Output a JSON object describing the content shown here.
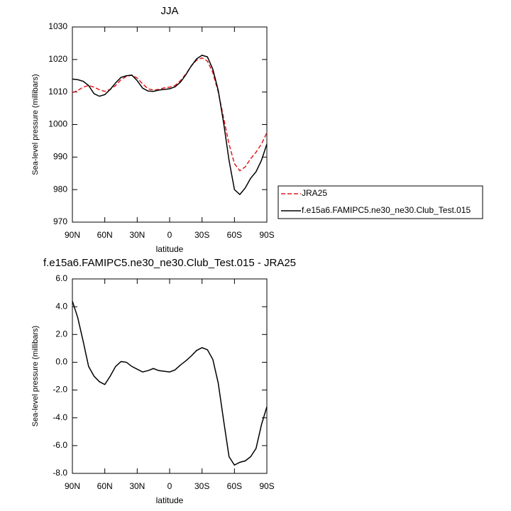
{
  "chart_data": [
    {
      "type": "line",
      "title": "JJA",
      "ylabel": "Sea-level pressure (millibars)",
      "xlabel": "latitude",
      "x": [
        90,
        85,
        80,
        75,
        70,
        65,
        60,
        55,
        50,
        45,
        40,
        35,
        30,
        25,
        20,
        15,
        10,
        5,
        0,
        -5,
        -10,
        -15,
        -20,
        -25,
        -30,
        -35,
        -40,
        -45,
        -50,
        -55,
        -60,
        -65,
        -70,
        -75,
        -80,
        -85,
        -90
      ],
      "series": [
        {
          "name": "JRA25",
          "color": "#e41a1c",
          "dash": "6,3",
          "values": [
            1009.8,
            1010.5,
            1011.5,
            1012,
            1011.5,
            1010.7,
            1010.2,
            1010.8,
            1012,
            1013.8,
            1014.8,
            1015.2,
            1014.3,
            1012.5,
            1011,
            1010.6,
            1010.8,
            1011.3,
            1011.5,
            1012,
            1013.5,
            1015.5,
            1018,
            1019.8,
            1020.5,
            1019.5,
            1016,
            1010,
            1002,
            994,
            988,
            985.8,
            987,
            989.5,
            991.5,
            994,
            997.5
          ]
        },
        {
          "name": "f.e15a6.FAMIPC5.ne30_ne30.Club_Test.015",
          "color": "#000000",
          "values": [
            1014,
            1013.8,
            1013.3,
            1012,
            1009.5,
            1008.7,
            1009.2,
            1010.8,
            1012.8,
            1014.5,
            1015,
            1015.2,
            1013.5,
            1011.2,
            1010.3,
            1010.2,
            1010.6,
            1010.8,
            1011,
            1011.6,
            1013,
            1015.3,
            1018,
            1020.2,
            1021.3,
            1020.8,
            1017,
            1010.5,
            1000.5,
            989,
            980,
            978.5,
            980.5,
            983.5,
            985.5,
            989,
            994
          ]
        }
      ],
      "xlim": [
        90,
        -90
      ],
      "xticks": [
        {
          "value": 90,
          "label": "90N"
        },
        {
          "value": 60,
          "label": "60N"
        },
        {
          "value": 30,
          "label": "30N"
        },
        0,
        {
          "value": -30,
          "label": "30S"
        },
        {
          "value": -60,
          "label": "60S"
        },
        {
          "value": -90,
          "label": "90S"
        }
      ],
      "ylim": [
        970,
        1030
      ],
      "yticks": [
        970,
        980,
        990,
        1000,
        1010,
        1020,
        1030
      ],
      "legend": "right"
    },
    {
      "type": "line",
      "title": "f.e15a6.FAMIPC5.ne30_ne30.Club_Test.015 - JRA25",
      "ylabel": "Sea-level pressure (millibars)",
      "xlabel": "latitude",
      "x": [
        90,
        85,
        80,
        75,
        70,
        65,
        60,
        55,
        50,
        45,
        40,
        35,
        30,
        25,
        20,
        15,
        10,
        5,
        0,
        -5,
        -10,
        -15,
        -20,
        -25,
        -30,
        -35,
        -40,
        -45,
        -50,
        -55,
        -60,
        -65,
        -70,
        -75,
        -80,
        -85,
        -90
      ],
      "series": [
        {
          "color": "#000000",
          "values": [
            4.4,
            3.2,
            1.5,
            -0.3,
            -1.0,
            -1.4,
            -1.6,
            -1.0,
            -0.3,
            0.05,
            0,
            -0.3,
            -0.5,
            -0.7,
            -0.6,
            -0.45,
            -0.6,
            -0.65,
            -0.7,
            -0.55,
            -0.2,
            0.1,
            0.45,
            0.85,
            1.05,
            0.9,
            0.2,
            -1.5,
            -4.2,
            -6.8,
            -7.4,
            -7.2,
            -7.1,
            -6.8,
            -6.2,
            -4.5,
            -3.2
          ]
        }
      ],
      "xlim": [
        90,
        -90
      ],
      "xticks": [
        {
          "value": 90,
          "label": "90N"
        },
        {
          "value": 60,
          "label": "60N"
        },
        {
          "value": 30,
          "label": "30N"
        },
        0,
        {
          "value": -30,
          "label": "30S"
        },
        {
          "value": -60,
          "label": "60S"
        },
        {
          "value": -90,
          "label": "90S"
        }
      ],
      "ylim": [
        -8,
        6
      ],
      "yticks": [
        {
          "value": -8,
          "label": "-8.0"
        },
        {
          "value": -6,
          "label": "-6.0"
        },
        {
          "value": -4,
          "label": "-4.0"
        },
        {
          "value": -2,
          "label": "-2.0"
        },
        {
          "value": 0,
          "label": "0.0"
        },
        {
          "value": 2,
          "label": "2.0"
        },
        {
          "value": 4,
          "label": "4.0"
        },
        {
          "value": 6,
          "label": "6.0"
        }
      ]
    }
  ]
}
